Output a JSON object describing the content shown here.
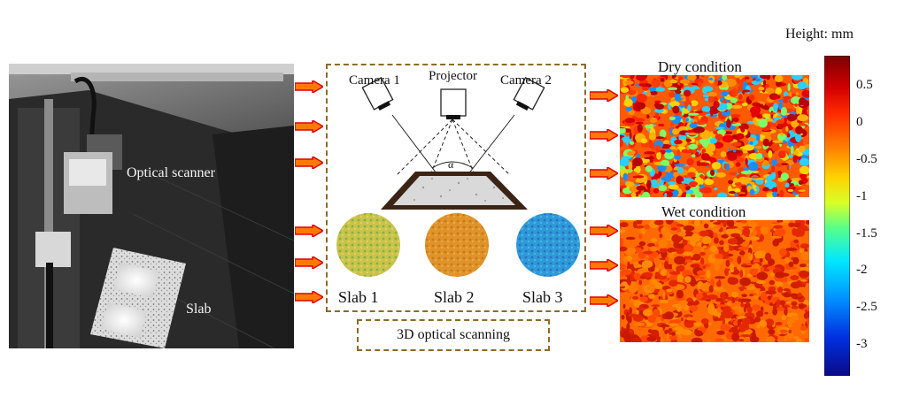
{
  "photo": {
    "optical_scanner_label": "Optical scanner",
    "slab_label": "Slab"
  },
  "scanning": {
    "camera1": "Camera 1",
    "projector": "Projector",
    "camera2": "Camera 2",
    "angle_symbol": "α",
    "slabs": [
      {
        "label": "Slab 1",
        "color": "#c9c34a"
      },
      {
        "label": "Slab 2",
        "color": "#e0932a"
      },
      {
        "label": "Slab 3",
        "color": "#2f9ad8"
      }
    ],
    "caption": "3D optical scanning"
  },
  "results": {
    "dry_title": "Dry condition",
    "wet_title": "Wet condition"
  },
  "colorbar": {
    "title": "Height: mm",
    "ticks": [
      "0.5",
      "0",
      "-0.5",
      "-1",
      "-1.5",
      "-2",
      "-2.5",
      "-3"
    ]
  },
  "colors": {
    "dashed_border": "#8b6a2a",
    "arrow_fill": "#ff7a00",
    "arrow_outline": "#e00000"
  }
}
